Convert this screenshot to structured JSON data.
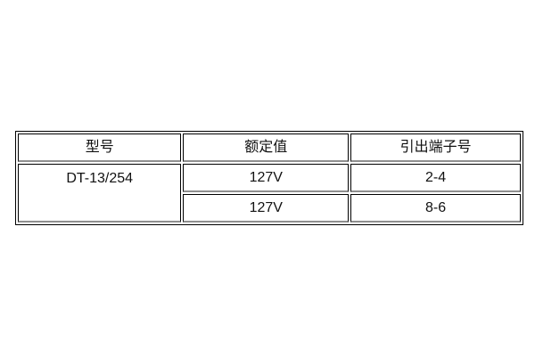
{
  "table": {
    "headers": [
      "型号",
      "额定值",
      "引出端子号"
    ],
    "model": "DT-13/254",
    "rows": [
      {
        "rated_value": "127V",
        "terminal": "2-4"
      },
      {
        "rated_value": "127V",
        "terminal": "8-6"
      }
    ],
    "colors": {
      "border": "#000000",
      "border_shadow": "#8f8f8f",
      "text": "#111111",
      "background": "#ffffff"
    }
  }
}
